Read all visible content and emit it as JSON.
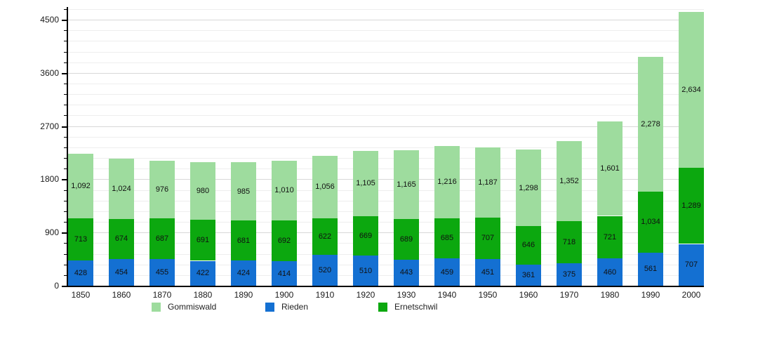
{
  "chart_data": {
    "type": "bar",
    "stacked": true,
    "title": "",
    "xlabel": "",
    "ylabel": "",
    "categories": [
      "1850",
      "1860",
      "1870",
      "1880",
      "1890",
      "1900",
      "1910",
      "1920",
      "1930",
      "1940",
      "1950",
      "1960",
      "1970",
      "1980",
      "1990",
      "2000"
    ],
    "series": [
      {
        "name": "Rieden",
        "color": "#1470d2",
        "values": [
          428,
          454,
          455,
          422,
          424,
          414,
          520,
          510,
          443,
          459,
          451,
          361,
          375,
          460,
          561,
          707
        ]
      },
      {
        "name": "Ernetschwil",
        "color": "#0ca80f",
        "values": [
          713,
          674,
          687,
          691,
          681,
          692,
          622,
          669,
          689,
          685,
          707,
          646,
          718,
          721,
          1034,
          1289
        ]
      },
      {
        "name": "Gommiswald",
        "color": "#9edc9e",
        "values": [
          1092,
          1024,
          976,
          980,
          985,
          1010,
          1056,
          1105,
          1165,
          1216,
          1187,
          1298,
          1352,
          1601,
          2278,
          2634
        ]
      }
    ],
    "legend": [
      {
        "label": "Gommiswald",
        "color": "#9edc9e"
      },
      {
        "label": "Rieden",
        "color": "#1470d2"
      },
      {
        "label": "Ernetschwil",
        "color": "#0ca80f"
      }
    ],
    "legend_position": "bottom",
    "grid": true,
    "y_ticks": [
      0,
      900,
      1800,
      2700,
      3600,
      4500
    ],
    "y_minor_step": 180,
    "ylim": [
      0,
      4714
    ]
  }
}
